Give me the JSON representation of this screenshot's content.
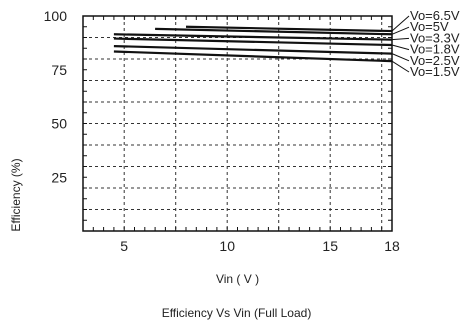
{
  "chart_data": {
    "type": "line",
    "title": "Efficiency  Vs Vin (Full Load)",
    "xlabel": "Vin ( V )",
    "ylabel": "Efficiency (%)",
    "xlim": [
      3,
      18
    ],
    "ylim": [
      0,
      100
    ],
    "x_ticks": [
      5,
      10,
      15,
      18
    ],
    "y_ticks": [
      25,
      50,
      75,
      100
    ],
    "grid": true,
    "legend_position": "right",
    "series": [
      {
        "name": "Vo=6.5V",
        "x": [
          8,
          18
        ],
        "y": [
          95,
          93
        ]
      },
      {
        "name": "Vo=5V",
        "x": [
          6.5,
          18
        ],
        "y": [
          94,
          91.5
        ]
      },
      {
        "name": "Vo=3.3V",
        "x": [
          4.5,
          18
        ],
        "y": [
          91.5,
          89
        ]
      },
      {
        "name": "Vo=1.8V",
        "x": [
          4.5,
          18
        ],
        "y": [
          89.5,
          86.5
        ]
      },
      {
        "name": "Vo=2.5V",
        "x": [
          4.5,
          18
        ],
        "y": [
          86,
          82.5
        ]
      },
      {
        "name": "Vo=1.5V",
        "x": [
          4.5,
          18
        ],
        "y": [
          83.5,
          79
        ]
      }
    ]
  }
}
